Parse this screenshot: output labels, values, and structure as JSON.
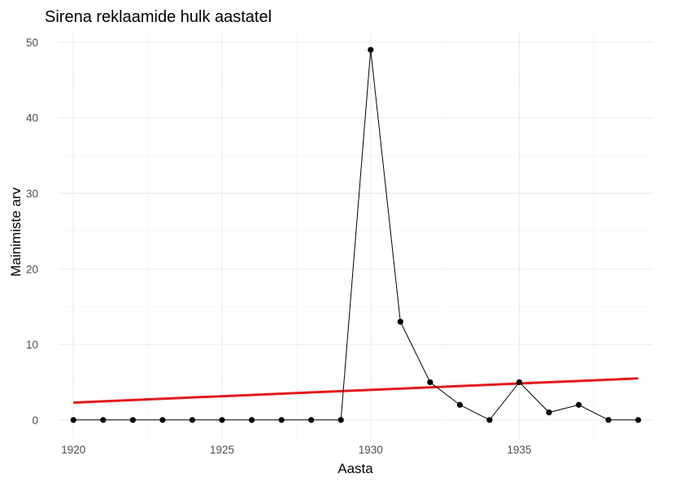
{
  "chart_data": {
    "type": "line",
    "title": "Sirena reklaamide hulk aastatel",
    "xlabel": "Aasta",
    "ylabel": "Mainimiste arv",
    "xlim": [
      1919.5,
      1939.5
    ],
    "ylim": [
      -2.5,
      51.5
    ],
    "x_ticks": [
      1920,
      1925,
      1930,
      1935
    ],
    "y_ticks": [
      0,
      10,
      20,
      30,
      40,
      50
    ],
    "grid": true,
    "legend": "none",
    "series": [
      {
        "x": [
          1920,
          1921,
          1922,
          1923,
          1924,
          1925,
          1926,
          1927,
          1928,
          1929,
          1930,
          1931,
          1932,
          1933,
          1934,
          1935,
          1936,
          1937,
          1938,
          1939
        ],
        "values": [
          0,
          0,
          0,
          0,
          0,
          0,
          0,
          0,
          0,
          0,
          49,
          13,
          5,
          2,
          0,
          5,
          1,
          2,
          0,
          0
        ],
        "color": "#000000",
        "markers": true
      }
    ],
    "trend_line": {
      "x": [
        1920,
        1939
      ],
      "values": [
        2.3,
        5.5
      ],
      "color": "#e31a1c"
    }
  }
}
